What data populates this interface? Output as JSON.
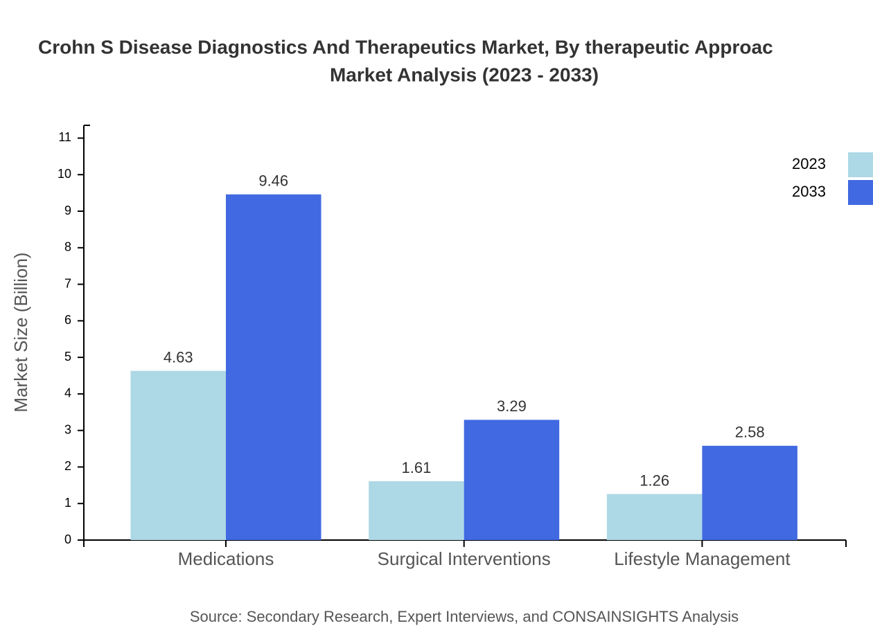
{
  "chart_data": {
    "type": "bar",
    "title": [
      "Crohn S Disease Diagnostics And Therapeutics Market, By therapeutic Approac",
      "Market Analysis (2023 - 2033)"
    ],
    "y_label": "Market Size (Billion)",
    "source": "Source: Secondary Research, Expert Interviews, and CONSAINSIGHTS Analysis",
    "categories": [
      "Medications",
      "Surgical Interventions",
      "Lifestyle Management"
    ],
    "series": [
      {
        "name": "2023",
        "color": "#add8e6",
        "values": [
          4.63,
          1.61,
          1.26
        ]
      },
      {
        "name": "2033",
        "color": "#4169e1",
        "values": [
          9.46,
          3.29,
          2.58
        ]
      }
    ],
    "ylim": [
      0,
      11.35
    ],
    "yticks": [
      0,
      1,
      2,
      3,
      4,
      5,
      6,
      7,
      8,
      9,
      10,
      11
    ],
    "legend": "top-right"
  }
}
